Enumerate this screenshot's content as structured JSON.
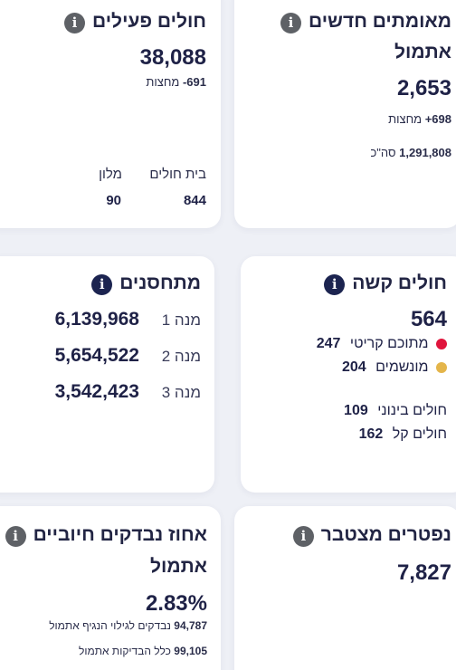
{
  "colors": {
    "background": "#eef0f6",
    "card": "#ffffff",
    "text": "#1f2247",
    "critical_dot": "#e0153c",
    "ventilated_dot": "#e4b54a",
    "info_gray": "#5e6166",
    "info_navy": "#1c2450"
  },
  "cards": {
    "new_confirmed": {
      "title_line1": "מאומתים חדשים",
      "title_line2": "אתמול",
      "value": "2,653",
      "midnight_delta": "+698",
      "midnight_label": "מחצות",
      "total_value": "1,291,808",
      "total_label": "סה\"כ",
      "info_icon": "info-icon"
    },
    "active_patients": {
      "title": "חולים פעילים",
      "value": "38,088",
      "midnight_delta": "-691",
      "midnight_label": "מחצות",
      "hospital_label": "בית חולים",
      "hotel_label": "מלון",
      "hospital_value": "844",
      "hotel_value": "90",
      "info_icon": "info-icon"
    },
    "severe": {
      "title": "חולים קשה",
      "value": "564",
      "critical_value": "247",
      "critical_label": "מתוכם קריטי",
      "ventilated_value": "204",
      "ventilated_label": "מונשמים",
      "moderate_label": "חולים בינוני",
      "moderate_value": "109",
      "mild_label": "חולים קל",
      "mild_value": "162",
      "info_icon": "info-icon"
    },
    "vaccinated": {
      "title": "מתחסנים",
      "dose1_label": "מנה 1",
      "dose1_value": "6,139,968",
      "dose2_label": "מנה 2",
      "dose2_value": "5,654,522",
      "dose3_label": "מנה 3",
      "dose3_value": "3,542,423",
      "info_icon": "info-icon"
    },
    "deceased": {
      "title": "נפטרים מצטבר",
      "value": "7,827",
      "info_icon": "info-icon"
    },
    "positive_rate": {
      "title_line1": "אחוז נבדקים חיוביים",
      "title_line2": "אתמול",
      "value": "2.83%",
      "tested_value": "94,787",
      "tested_label": "נבדקים לגילוי הנגיף אתמול",
      "tests_value": "99,105",
      "tests_label": "כלל הבדיקות אתמול",
      "info_icon": "info-icon"
    }
  }
}
